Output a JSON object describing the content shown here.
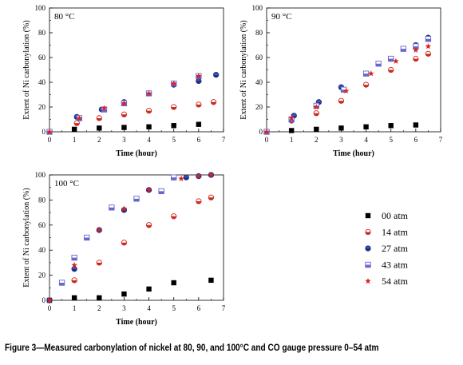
{
  "caption": "Figure 3—Measured carbonylation of nickel at 80, 90, and 100°C and CO gauge pressure 0–54 atm",
  "colors": {
    "00 atm": "#000000",
    "14 atm": "#cc2a1e",
    "27 atm": "#1c2f8c",
    "43 atm": "#6666cc",
    "54 atm": "#e02020"
  },
  "legend": {
    "placement": "bottom-right",
    "entries": [
      {
        "label": "00 atm",
        "marker": "square"
      },
      {
        "label": "14 atm",
        "marker": "half-circle-red"
      },
      {
        "label": "27 atm",
        "marker": "half-circle-blue"
      },
      {
        "label": "43 atm",
        "marker": "half-square"
      },
      {
        "label": "54 atm",
        "marker": "star"
      }
    ]
  },
  "chart_data": [
    {
      "type": "scatter",
      "title": "80 °C",
      "xlabel": "Time (hour)",
      "ylabel": "Extent of Ni carbonylation (%)",
      "xlim": [
        0,
        7
      ],
      "ylim": [
        0,
        100
      ],
      "xticks": [
        "0",
        "1",
        "2",
        "3",
        "4",
        "5",
        "6",
        "7"
      ],
      "yticks": [
        "0",
        "20",
        "40",
        "60",
        "80",
        "100"
      ],
      "series": [
        {
          "name": "00 atm",
          "x": [
            0,
            1,
            2,
            3,
            4,
            5,
            6
          ],
          "y": [
            0,
            2,
            3,
            3.5,
            4,
            5,
            6
          ]
        },
        {
          "name": "14 atm",
          "x": [
            0,
            1.1,
            2,
            3,
            4,
            5,
            6,
            6.6
          ],
          "y": [
            0,
            7,
            11,
            14,
            17,
            20,
            22,
            24
          ]
        },
        {
          "name": "27 atm",
          "x": [
            0,
            1.1,
            2.1,
            3,
            4,
            5,
            6,
            6.7
          ],
          "y": [
            0,
            12,
            18,
            24,
            31,
            38,
            41,
            46
          ]
        },
        {
          "name": "43 atm",
          "x": [
            0,
            1.2,
            2.2,
            3,
            4,
            5,
            6
          ],
          "y": [
            0,
            11,
            18,
            23,
            31,
            39,
            45
          ]
        },
        {
          "name": "54 atm",
          "x": [
            0,
            1.2,
            2.2,
            3,
            4,
            5,
            6
          ],
          "y": [
            0,
            11,
            19,
            23,
            31,
            39,
            45
          ]
        }
      ]
    },
    {
      "type": "scatter",
      "title": "90 °C",
      "xlabel": "Time (hour)",
      "ylabel": "Extent of Ni carbonylation (%)",
      "xlim": [
        0,
        7
      ],
      "ylim": [
        0,
        100
      ],
      "xticks": [
        "0",
        "1",
        "2",
        "3",
        "4",
        "5",
        "6",
        "7"
      ],
      "yticks": [
        "0",
        "20",
        "40",
        "60",
        "80",
        "100"
      ],
      "series": [
        {
          "name": "00 atm",
          "x": [
            0,
            1,
            2,
            3,
            4,
            5,
            6
          ],
          "y": [
            0,
            1,
            2,
            3,
            4,
            5,
            5.5
          ]
        },
        {
          "name": "14 atm",
          "x": [
            0,
            1,
            2,
            3,
            4,
            5,
            6,
            6.5
          ],
          "y": [
            0,
            9,
            15,
            25,
            38,
            50,
            59,
            63
          ]
        },
        {
          "name": "27 atm",
          "x": [
            0,
            1.1,
            2.1,
            3,
            4,
            5,
            6,
            6.5
          ],
          "y": [
            0,
            13,
            24,
            36,
            47,
            59,
            70,
            76
          ]
        },
        {
          "name": "43 atm",
          "x": [
            0,
            1,
            2,
            3.1,
            4,
            4.5,
            5,
            5.5,
            6,
            6.5
          ],
          "y": [
            0,
            10,
            21,
            34,
            47,
            55,
            59,
            67,
            69,
            75
          ]
        },
        {
          "name": "54 atm",
          "x": [
            0,
            1,
            2,
            3.2,
            4.2,
            5.2,
            6,
            6.5
          ],
          "y": [
            0,
            11,
            20,
            33,
            47,
            57,
            66,
            69
          ]
        }
      ]
    },
    {
      "type": "scatter",
      "title": "100 °C",
      "xlabel": "Time (hour)",
      "ylabel": "Extent of Ni carbonylation (%)",
      "xlim": [
        0,
        7
      ],
      "ylim": [
        0,
        100
      ],
      "xticks": [
        "0",
        "1",
        "2",
        "3",
        "4",
        "5",
        "6",
        "7"
      ],
      "yticks": [
        "0",
        "20",
        "40",
        "60",
        "80",
        "100"
      ],
      "series": [
        {
          "name": "00 atm",
          "x": [
            0,
            1,
            2,
            3,
            4,
            5,
            6.5
          ],
          "y": [
            0,
            2,
            2,
            5,
            9,
            14,
            16
          ]
        },
        {
          "name": "14 atm",
          "x": [
            0,
            1,
            2,
            3,
            4,
            5,
            6,
            6.5
          ],
          "y": [
            0,
            16,
            30,
            46,
            60,
            67,
            79,
            82
          ]
        },
        {
          "name": "27 atm",
          "x": [
            0,
            1,
            2,
            3,
            4,
            5,
            5.5,
            6,
            6.5
          ],
          "y": [
            0,
            25,
            56,
            72,
            88,
            98,
            98,
            99,
            100
          ]
        },
        {
          "name": "43 atm",
          "x": [
            0.5,
            1,
            1.5,
            2.5,
            3.5,
            4.5,
            5
          ],
          "y": [
            14,
            34,
            50,
            74,
            81,
            87,
            98
          ]
        },
        {
          "name": "54 atm",
          "x": [
            0,
            1,
            2,
            3,
            4,
            5.3,
            6,
            6.5
          ],
          "y": [
            0,
            28,
            56,
            73,
            88,
            97,
            99,
            100
          ]
        }
      ]
    }
  ]
}
